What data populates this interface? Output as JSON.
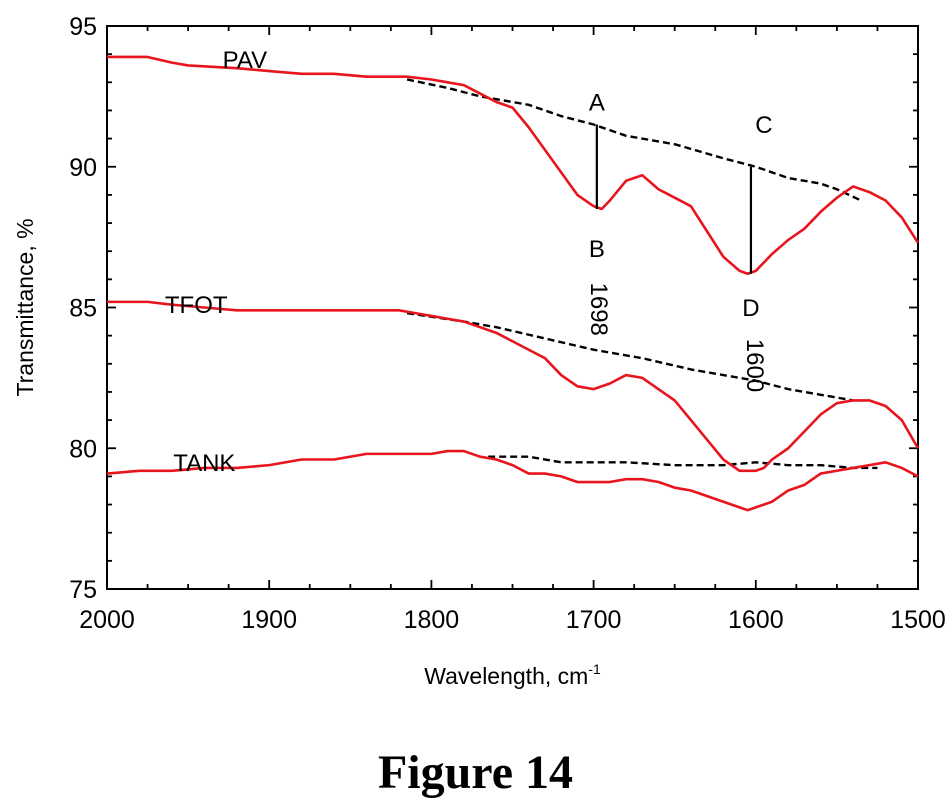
{
  "caption": "Figure 14",
  "chart_data": {
    "type": "line",
    "xlabel": "Wavelength, cm",
    "xlabel_sup": "-1",
    "ylabel": "Transmittance, %",
    "xlim": [
      2000,
      1500
    ],
    "ylim": [
      75,
      95
    ],
    "xticks": [
      2000,
      1900,
      1800,
      1700,
      1600,
      1500
    ],
    "yticks": [
      75,
      80,
      85,
      90,
      95
    ],
    "grid": false,
    "colors": {
      "spectrum": "#e8141e",
      "baseline": "#000000",
      "marker": "#000000"
    },
    "series": [
      {
        "name": "PAV",
        "x": [
          2000,
          1975,
          1960,
          1950,
          1920,
          1900,
          1880,
          1870,
          1860,
          1840,
          1830,
          1815,
          1800,
          1790,
          1780,
          1770,
          1760,
          1750,
          1740,
          1730,
          1720,
          1710,
          1700,
          1695,
          1690,
          1680,
          1670,
          1660,
          1650,
          1640,
          1630,
          1620,
          1610,
          1605,
          1600,
          1590,
          1580,
          1570,
          1560,
          1550,
          1540,
          1530,
          1520,
          1510,
          1500
        ],
        "y": [
          93.9,
          93.9,
          93.7,
          93.6,
          93.5,
          93.4,
          93.3,
          93.3,
          93.3,
          93.2,
          93.2,
          93.2,
          93.1,
          93.0,
          92.9,
          92.6,
          92.3,
          92.1,
          91.4,
          90.6,
          89.8,
          89.0,
          88.6,
          88.5,
          88.8,
          89.5,
          89.7,
          89.2,
          88.9,
          88.6,
          87.7,
          86.8,
          86.3,
          86.2,
          86.3,
          86.9,
          87.4,
          87.8,
          88.4,
          88.9,
          89.3,
          89.1,
          88.8,
          88.2,
          87.3
        ]
      },
      {
        "name": "TFOT",
        "x": [
          2000,
          1975,
          1960,
          1940,
          1920,
          1900,
          1880,
          1860,
          1840,
          1820,
          1810,
          1800,
          1790,
          1780,
          1770,
          1760,
          1750,
          1740,
          1730,
          1720,
          1710,
          1700,
          1690,
          1680,
          1670,
          1660,
          1650,
          1640,
          1630,
          1620,
          1610,
          1605,
          1600,
          1595,
          1590,
          1580,
          1570,
          1560,
          1550,
          1540,
          1530,
          1520,
          1510,
          1500
        ],
        "y": [
          85.2,
          85.2,
          85.1,
          85.0,
          84.9,
          84.9,
          84.9,
          84.9,
          84.9,
          84.9,
          84.8,
          84.7,
          84.6,
          84.5,
          84.3,
          84.1,
          83.8,
          83.5,
          83.2,
          82.6,
          82.2,
          82.1,
          82.3,
          82.6,
          82.5,
          82.1,
          81.7,
          81.0,
          80.3,
          79.6,
          79.2,
          79.2,
          79.2,
          79.3,
          79.6,
          80.0,
          80.6,
          81.2,
          81.6,
          81.7,
          81.7,
          81.5,
          81.0,
          80.0
        ]
      },
      {
        "name": "TANK",
        "x": [
          2000,
          1980,
          1960,
          1940,
          1920,
          1900,
          1880,
          1860,
          1840,
          1820,
          1800,
          1790,
          1780,
          1770,
          1760,
          1750,
          1740,
          1730,
          1720,
          1710,
          1700,
          1690,
          1680,
          1670,
          1660,
          1650,
          1640,
          1630,
          1620,
          1610,
          1605,
          1600,
          1590,
          1580,
          1570,
          1560,
          1550,
          1540,
          1530,
          1520,
          1510,
          1500
        ],
        "y": [
          79.1,
          79.2,
          79.2,
          79.3,
          79.3,
          79.4,
          79.6,
          79.6,
          79.8,
          79.8,
          79.8,
          79.9,
          79.9,
          79.7,
          79.6,
          79.4,
          79.1,
          79.1,
          79.0,
          78.8,
          78.8,
          78.8,
          78.9,
          78.9,
          78.8,
          78.6,
          78.5,
          78.3,
          78.1,
          77.9,
          77.8,
          77.9,
          78.1,
          78.5,
          78.7,
          79.1,
          79.2,
          79.3,
          79.4,
          79.5,
          79.3,
          79.0
        ]
      }
    ],
    "baselines": [
      {
        "x": [
          1815,
          1790,
          1770,
          1740,
          1720,
          1700,
          1680,
          1650,
          1620,
          1600,
          1580,
          1560,
          1550,
          1535
        ],
        "y": [
          93.1,
          92.8,
          92.5,
          92.2,
          91.8,
          91.5,
          91.1,
          90.8,
          90.3,
          90.0,
          89.6,
          89.4,
          89.2,
          88.8
        ]
      },
      {
        "x": [
          1815,
          1780,
          1760,
          1730,
          1700,
          1670,
          1640,
          1620,
          1600,
          1580,
          1560,
          1540
        ],
        "y": [
          84.8,
          84.5,
          84.3,
          83.9,
          83.5,
          83.2,
          82.8,
          82.6,
          82.4,
          82.1,
          81.9,
          81.7
        ]
      },
      {
        "x": [
          1765,
          1740,
          1720,
          1700,
          1680,
          1650,
          1620,
          1600,
          1580,
          1560,
          1540,
          1525
        ],
        "y": [
          79.7,
          79.7,
          79.5,
          79.5,
          79.5,
          79.4,
          79.4,
          79.5,
          79.4,
          79.4,
          79.3,
          79.3
        ]
      }
    ],
    "markers": [
      {
        "x": 1698,
        "y1": 91.5,
        "y2": 88.5
      },
      {
        "x": 1603,
        "y1": 90.0,
        "y2": 86.2
      }
    ],
    "annotations": [
      {
        "text": "PAV",
        "x": 1915,
        "y": 93.5,
        "rotate": 0
      },
      {
        "text": "TFOT",
        "x": 1945,
        "y": 84.8,
        "rotate": 0
      },
      {
        "text": "TANK",
        "x": 1940,
        "y": 79.2,
        "rotate": 0
      },
      {
        "text": "A",
        "x": 1698,
        "y": 92.0,
        "rotate": 0
      },
      {
        "text": "B",
        "x": 1698,
        "y": 86.8,
        "rotate": 0
      },
      {
        "text": "C",
        "x": 1595,
        "y": 91.2,
        "rotate": 0
      },
      {
        "text": "D",
        "x": 1603,
        "y": 84.7,
        "rotate": 0
      },
      {
        "text": "1698",
        "x": 1696,
        "y": 85.0,
        "rotate": 90
      },
      {
        "text": "1600",
        "x": 1600,
        "y": 83.0,
        "rotate": 90
      }
    ]
  }
}
